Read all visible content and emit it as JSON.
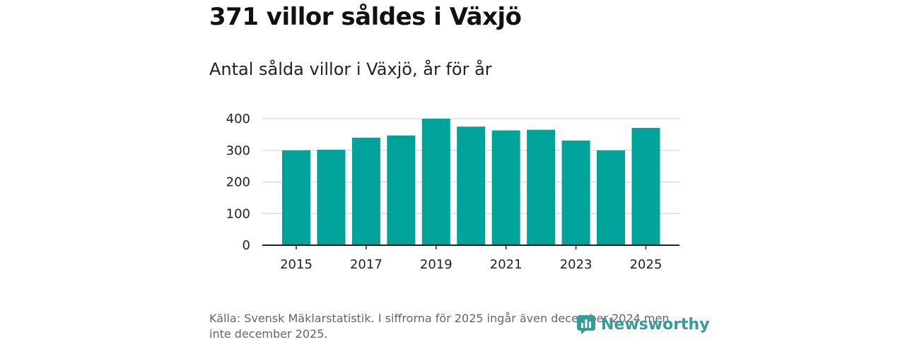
{
  "title": "371 villor såldes i Växjö",
  "subtitle": "Antal sålda villor i Växjö, år för år",
  "source": "Källa: Svensk Mäklarstatistik. I siffrorna för 2025 ingår även december 2024 men inte december 2025.",
  "logo": "Newsworthy",
  "colors": {
    "bar": "#00a39a",
    "grid": "#dddddd",
    "axis": "#222222",
    "logo": "#3a9a96"
  },
  "chart_data": {
    "type": "bar",
    "categories": [
      "2015",
      "2016",
      "2017",
      "2018",
      "2019",
      "2020",
      "2021",
      "2022",
      "2023",
      "2024",
      "2025"
    ],
    "values": [
      300,
      302,
      340,
      347,
      400,
      375,
      363,
      365,
      331,
      300,
      371
    ],
    "x_tick_labels": [
      "2015",
      "2017",
      "2019",
      "2021",
      "2023",
      "2025"
    ],
    "y_ticks": [
      0,
      100,
      200,
      300,
      400
    ],
    "ylim": [
      0,
      400
    ],
    "title": "371 villor såldes i Växjö",
    "subtitle": "Antal sålda villor i Växjö, år för år",
    "xlabel": "",
    "ylabel": "",
    "grid": true
  }
}
